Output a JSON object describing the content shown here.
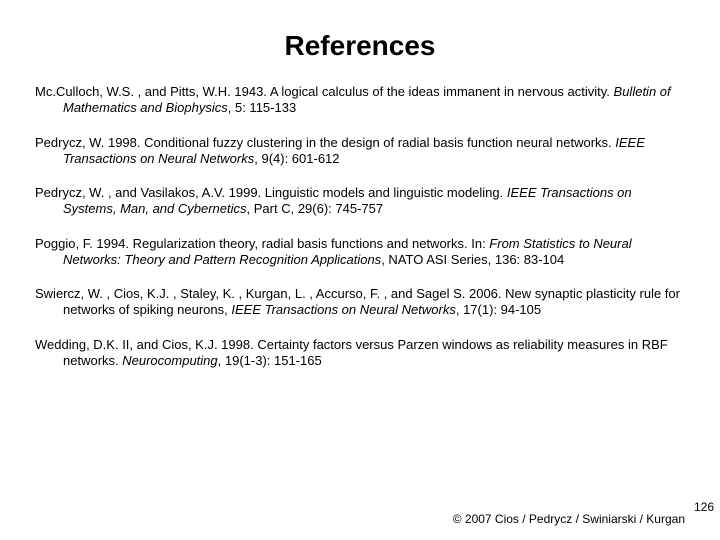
{
  "title": "References",
  "references": [
    {
      "authors": "Mc.Culloch, W.S. , and Pitts, W.H. 1943. A logical calculus of the ideas immanent in nervous activity. ",
      "journal": "Bulletin of Mathematics and Biophysics",
      "citation": ", 5: 115-133"
    },
    {
      "authors": "Pedrycz, W. 1998. Conditional fuzzy clustering in the design of radial basis function neural networks. ",
      "journal": "IEEE Transactions on Neural Networks",
      "citation": ", 9(4): 601-612"
    },
    {
      "authors": "Pedrycz, W. , and Vasilakos, A.V. 1999. Linguistic models and linguistic modeling. ",
      "journal": "IEEE Transactions on Systems, Man, and Cybernetics",
      "citation": ", Part C, 29(6): 745-757"
    },
    {
      "authors": "Poggio, F. 1994. Regularization theory, radial basis functions and networks. In: ",
      "journal": "From Statistics to Neural Networks: Theory and Pattern Recognition Applications",
      "citation": ", NATO ASI Series, 136: 83-104"
    },
    {
      "authors": "Swiercz, W. , Cios, K.J. , Staley, K. , Kurgan, L. , Accurso, F. , and Sagel S. 2006. New synaptic plasticity rule for networks of spiking neurons, ",
      "journal": "IEEE Transactions on Neural Networks",
      "citation": ", 17(1): 94-105"
    },
    {
      "authors": "Wedding, D.K. II, and Cios, K.J. 1998. Certainty factors versus Parzen windows as reliability measures in RBF networks. ",
      "journal": "Neurocomputing",
      "citation": ", 19(1-3): 151-165"
    }
  ],
  "copyright": "© 2007 Cios / Pedrycz / Swiniarski / Kurgan",
  "page_number": "126"
}
